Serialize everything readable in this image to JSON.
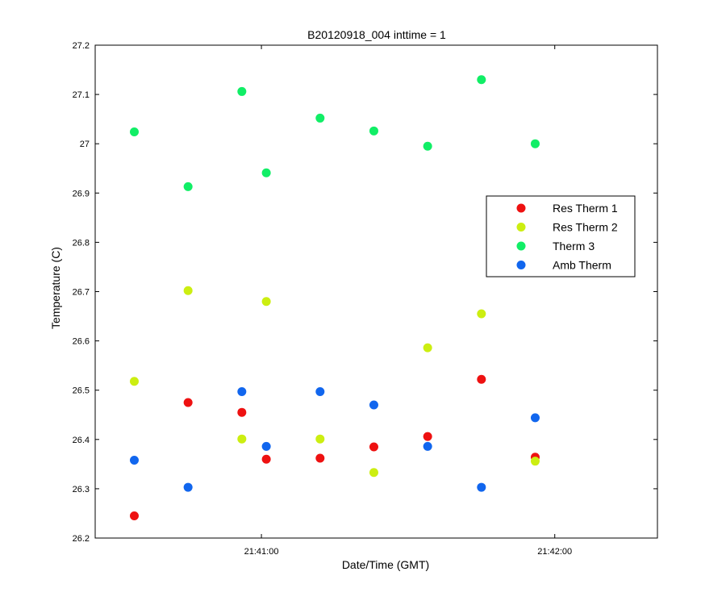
{
  "chart_data": {
    "type": "scatter",
    "title": "B20120918_004 inttime = 1",
    "xlabel": "Date/Time (GMT)",
    "ylabel": "Temperature (C)",
    "xlim": [
      "21:40:26",
      "21:42:21"
    ],
    "ylim": [
      26.2,
      27.2
    ],
    "x_ticks": [
      "21:41:00",
      "21:42:00"
    ],
    "y_ticks": [
      "26.2",
      "26.3",
      "26.4",
      "26.5",
      "26.6",
      "26.7",
      "26.8",
      "26.9",
      "27",
      "27.1",
      "27.2"
    ],
    "grid": false,
    "legend_position": "right",
    "x": [
      "21:40:34",
      "21:40:45",
      "21:40:56",
      "21:41:01",
      "21:41:12",
      "21:41:23",
      "21:41:34",
      "21:41:45",
      "21:41:56"
    ],
    "series": [
      {
        "name": "Res Therm 1",
        "color": "#ee1111",
        "values": [
          26.245,
          26.475,
          26.455,
          26.36,
          26.362,
          26.385,
          26.406,
          26.522,
          26.364
        ]
      },
      {
        "name": "Res Therm 2",
        "color": "#ccee11",
        "values": [
          26.518,
          26.702,
          26.401,
          26.68,
          26.401,
          26.333,
          26.586,
          26.655,
          26.356
        ]
      },
      {
        "name": "Therm 3",
        "color": "#11ee66",
        "values": [
          27.024,
          26.913,
          27.106,
          26.941,
          27.052,
          27.026,
          26.995,
          27.13,
          27.0
        ]
      },
      {
        "name": "Amb Therm",
        "color": "#1166ee",
        "values": [
          26.358,
          26.303,
          26.497,
          26.386,
          26.497,
          26.47,
          26.386,
          26.303,
          26.444
        ]
      }
    ]
  }
}
